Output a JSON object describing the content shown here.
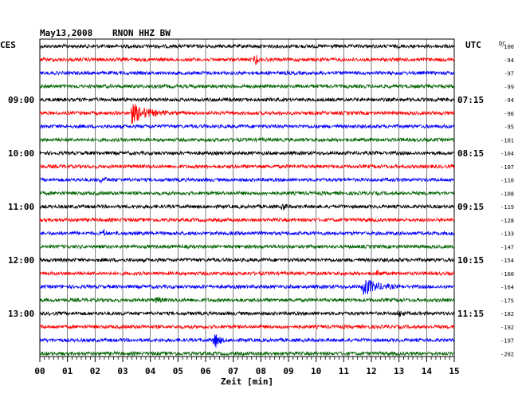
{
  "header": {
    "date": "May13,2008",
    "station": "RNON HHZ BW",
    "left_zone": "CES",
    "right_zone": "UTC",
    "dc_label": "DC"
  },
  "colors": {
    "traces": [
      "#000000",
      "#ff0000",
      "#0000ff",
      "#006400"
    ],
    "grid": "#000000",
    "background": "#ffffff"
  },
  "chart_data": {
    "type": "line",
    "title": "May13,2008 RNON HHZ BW",
    "xlabel": "Zeit [min]",
    "xlim": [
      0,
      15
    ],
    "x_ticks": [
      "00",
      "01",
      "02",
      "03",
      "04",
      "05",
      "06",
      "07",
      "08",
      "09",
      "10",
      "11",
      "12",
      "13",
      "14",
      "15"
    ],
    "trace_count": 24,
    "trace_colors_cycle": [
      "black",
      "red",
      "blue",
      "green"
    ],
    "left_time_labels": [
      {
        "trace": 4,
        "label": "09:00"
      },
      {
        "trace": 8,
        "label": "10:00"
      },
      {
        "trace": 12,
        "label": "11:00"
      },
      {
        "trace": 16,
        "label": "12:00"
      },
      {
        "trace": 20,
        "label": "13:00"
      }
    ],
    "right_time_labels": [
      {
        "trace": 4,
        "label": "07:15"
      },
      {
        "trace": 8,
        "label": "08:15"
      },
      {
        "trace": 12,
        "label": "09:15"
      },
      {
        "trace": 16,
        "label": "10:15"
      },
      {
        "trace": 20,
        "label": "11:15"
      }
    ],
    "dc_offsets": [
      "-100",
      "-94",
      "-97",
      "-99",
      "-94",
      "-96",
      "-95",
      "-101",
      "-104",
      "-107",
      "-110",
      "-108",
      "-119",
      "-128",
      "-133",
      "-147",
      "-154",
      "-160",
      "-164",
      "-175",
      "-182",
      "-192",
      "-197",
      "-202"
    ],
    "events": [
      {
        "trace": 1,
        "minute": 7.8,
        "amplitude": 0.9,
        "duration": 0.15
      },
      {
        "trace": 5,
        "minute": 3.3,
        "amplitude": 1.3,
        "duration": 1.4
      },
      {
        "trace": 10,
        "minute": 2.2,
        "amplitude": 0.3,
        "duration": 0.5
      },
      {
        "trace": 12,
        "minute": 8.8,
        "amplitude": 0.6,
        "duration": 0.2
      },
      {
        "trace": 14,
        "minute": 2.3,
        "amplitude": 0.5,
        "duration": 0.2
      },
      {
        "trace": 17,
        "minute": 12.2,
        "amplitude": 0.35,
        "duration": 0.3
      },
      {
        "trace": 18,
        "minute": 11.7,
        "amplitude": 1.2,
        "duration": 1.2
      },
      {
        "trace": 19,
        "minute": 4.2,
        "amplitude": 0.4,
        "duration": 0.4
      },
      {
        "trace": 20,
        "minute": 13.0,
        "amplitude": 0.55,
        "duration": 0.2
      },
      {
        "trace": 22,
        "minute": 6.3,
        "amplitude": 1.3,
        "duration": 0.4
      }
    ]
  }
}
